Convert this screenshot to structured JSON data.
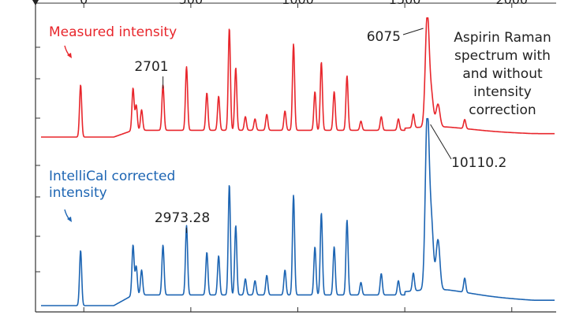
{
  "chart_data": {
    "type": "line",
    "title": "",
    "xlabel": "",
    "ylabel": "",
    "xlim": [
      -200,
      2200
    ],
    "x_ticks": [
      0,
      500,
      1000,
      1500,
      2000
    ],
    "grid": false,
    "legend": "none",
    "annotation": "Aspirin Raman spectrum with and without intensity correction",
    "annotation_lines": [
      "Aspirin Raman",
      "spectrum with",
      "and without",
      "intensity",
      "correction"
    ],
    "series": [
      {
        "name": "Measured intensity",
        "color": "#e8262c",
        "baseline": 0,
        "peaks": [
          {
            "x": -15,
            "h": 0.46
          },
          {
            "x": 230,
            "h": 0.37
          },
          {
            "x": 245,
            "h": 0.22
          },
          {
            "x": 270,
            "h": 0.18
          },
          {
            "x": 370,
            "h": 0.4
          },
          {
            "x": 480,
            "h": 0.56
          },
          {
            "x": 575,
            "h": 0.33
          },
          {
            "x": 630,
            "h": 0.3
          },
          {
            "x": 680,
            "h": 0.9
          },
          {
            "x": 710,
            "h": 0.55
          },
          {
            "x": 755,
            "h": 0.12
          },
          {
            "x": 800,
            "h": 0.1
          },
          {
            "x": 855,
            "h": 0.14
          },
          {
            "x": 940,
            "h": 0.17
          },
          {
            "x": 980,
            "h": 0.76
          },
          {
            "x": 1080,
            "h": 0.34
          },
          {
            "x": 1110,
            "h": 0.6
          },
          {
            "x": 1170,
            "h": 0.34
          },
          {
            "x": 1230,
            "h": 0.48
          },
          {
            "x": 1295,
            "h": 0.08
          },
          {
            "x": 1390,
            "h": 0.12
          },
          {
            "x": 1470,
            "h": 0.1
          },
          {
            "x": 1540,
            "h": 0.12
          },
          {
            "x": 1605,
            "h": 1.0
          },
          {
            "x": 1625,
            "h": 0.26
          },
          {
            "x": 1655,
            "h": 0.2
          },
          {
            "x": 1780,
            "h": 0.08
          }
        ],
        "labels": [
          {
            "x": 370,
            "text": "2701"
          },
          {
            "x": 1605,
            "text": "6075"
          }
        ]
      },
      {
        "name": "IntelliCal corrected intensity",
        "color": "#1d65b3",
        "baseline": 0,
        "peaks": [
          {
            "x": -15,
            "h": 0.31
          },
          {
            "x": 230,
            "h": 0.28
          },
          {
            "x": 245,
            "h": 0.16
          },
          {
            "x": 270,
            "h": 0.14
          },
          {
            "x": 370,
            "h": 0.28
          },
          {
            "x": 480,
            "h": 0.39
          },
          {
            "x": 575,
            "h": 0.24
          },
          {
            "x": 630,
            "h": 0.22
          },
          {
            "x": 680,
            "h": 0.62
          },
          {
            "x": 710,
            "h": 0.39
          },
          {
            "x": 755,
            "h": 0.09
          },
          {
            "x": 800,
            "h": 0.08
          },
          {
            "x": 855,
            "h": 0.11
          },
          {
            "x": 940,
            "h": 0.14
          },
          {
            "x": 980,
            "h": 0.56
          },
          {
            "x": 1080,
            "h": 0.27
          },
          {
            "x": 1110,
            "h": 0.46
          },
          {
            "x": 1170,
            "h": 0.27
          },
          {
            "x": 1230,
            "h": 0.42
          },
          {
            "x": 1295,
            "h": 0.07
          },
          {
            "x": 1390,
            "h": 0.12
          },
          {
            "x": 1470,
            "h": 0.08
          },
          {
            "x": 1540,
            "h": 0.1
          },
          {
            "x": 1605,
            "h": 1.0
          },
          {
            "x": 1625,
            "h": 0.35
          },
          {
            "x": 1655,
            "h": 0.28
          },
          {
            "x": 1780,
            "h": 0.08
          }
        ],
        "labels": [
          {
            "x": 480,
            "text": "2973.28"
          },
          {
            "x": 1605,
            "text": "10110.2"
          }
        ]
      }
    ]
  }
}
